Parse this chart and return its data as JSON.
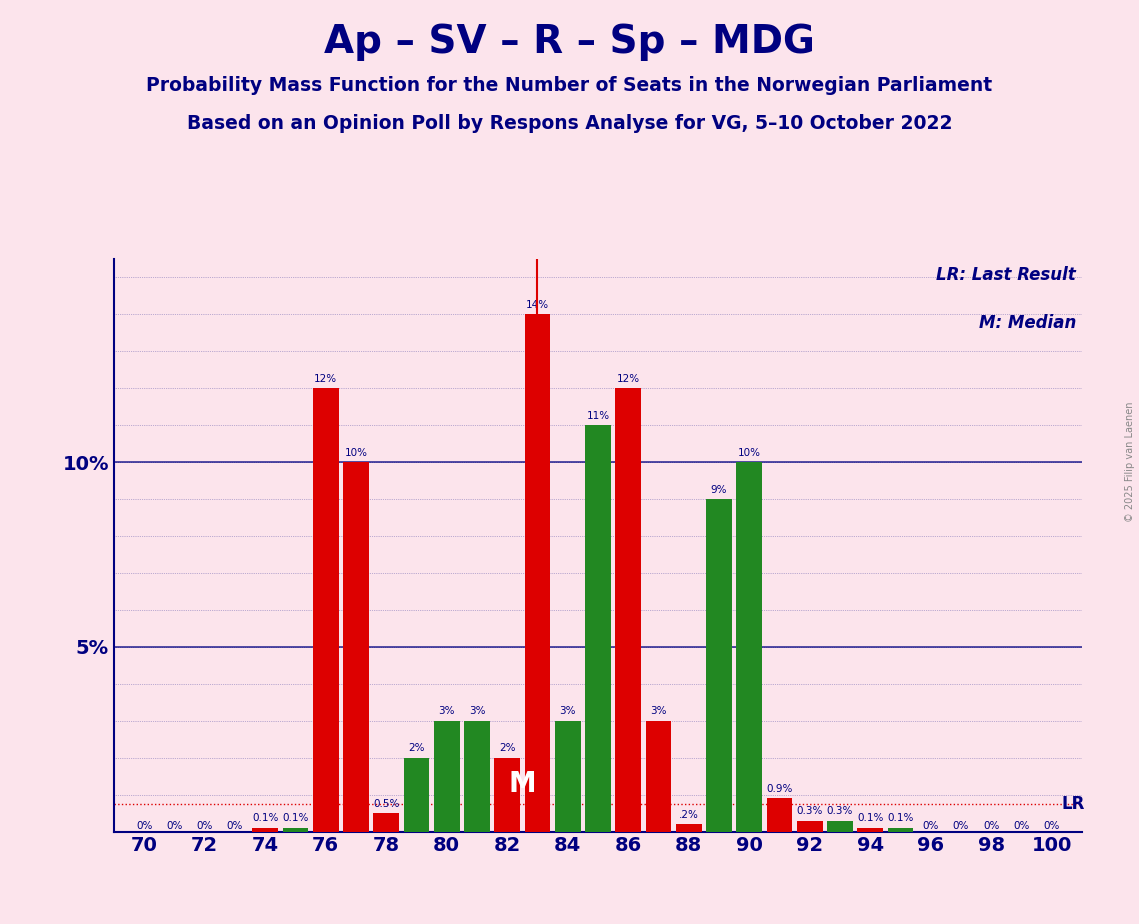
{
  "title": "Ap – SV – R – Sp – MDG",
  "subtitle1": "Probability Mass Function for the Number of Seats in the Norwegian Parliament",
  "subtitle2": "Based on an Opinion Poll by Respons Analyse for VG, 5–10 October 2022",
  "copyright": "© 2025 Filip van Laenen",
  "background_color": "#fce4ec",
  "bar_color_red": "#dd0000",
  "bar_color_green": "#228822",
  "title_color": "#000080",
  "bars": [
    {
      "x": 70,
      "value": 0.0,
      "color": "red",
      "label": "0%"
    },
    {
      "x": 71,
      "value": 0.0,
      "color": "red",
      "label": "0%"
    },
    {
      "x": 72,
      "value": 0.0,
      "color": "red",
      "label": "0%"
    },
    {
      "x": 73,
      "value": 0.0,
      "color": "red",
      "label": "0%"
    },
    {
      "x": 74,
      "value": 0.1,
      "color": "red",
      "label": "0.1%"
    },
    {
      "x": 75,
      "value": 0.1,
      "color": "green",
      "label": "0.1%"
    },
    {
      "x": 76,
      "value": 12.0,
      "color": "red",
      "label": "12%"
    },
    {
      "x": 77,
      "value": 10.0,
      "color": "red",
      "label": "10%"
    },
    {
      "x": 78,
      "value": 0.5,
      "color": "red",
      "label": "0.5%"
    },
    {
      "x": 79,
      "value": 2.0,
      "color": "green",
      "label": "2%"
    },
    {
      "x": 80,
      "value": 3.0,
      "color": "green",
      "label": "3%"
    },
    {
      "x": 81,
      "value": 3.0,
      "color": "green",
      "label": "3%"
    },
    {
      "x": 82,
      "value": 2.0,
      "color": "red",
      "label": "2%"
    },
    {
      "x": 83,
      "value": 14.0,
      "color": "red",
      "label": "14%"
    },
    {
      "x": 84,
      "value": 3.0,
      "color": "green",
      "label": "3%"
    },
    {
      "x": 85,
      "value": 11.0,
      "color": "green",
      "label": "11%"
    },
    {
      "x": 86,
      "value": 12.0,
      "color": "red",
      "label": "12%"
    },
    {
      "x": 87,
      "value": 3.0,
      "color": "red",
      "label": "3%"
    },
    {
      "x": 88,
      "value": 0.2,
      "color": "red",
      "label": ".2%"
    },
    {
      "x": 89,
      "value": 9.0,
      "color": "green",
      "label": "9%"
    },
    {
      "x": 90,
      "value": 10.0,
      "color": "green",
      "label": "10%"
    },
    {
      "x": 91,
      "value": 0.9,
      "color": "red",
      "label": "0.9%"
    },
    {
      "x": 92,
      "value": 0.3,
      "color": "red",
      "label": "0.3%"
    },
    {
      "x": 93,
      "value": 0.3,
      "color": "green",
      "label": "0.3%"
    },
    {
      "x": 94,
      "value": 0.1,
      "color": "red",
      "label": "0.1%"
    },
    {
      "x": 95,
      "value": 0.1,
      "color": "green",
      "label": "0.1%"
    },
    {
      "x": 96,
      "value": 0.0,
      "color": "red",
      "label": "0%"
    },
    {
      "x": 97,
      "value": 0.0,
      "color": "red",
      "label": "0%"
    },
    {
      "x": 98,
      "value": 0.0,
      "color": "red",
      "label": "0%"
    },
    {
      "x": 99,
      "value": 0.0,
      "color": "red",
      "label": "0%"
    },
    {
      "x": 100,
      "value": 0.0,
      "color": "red",
      "label": "0%"
    }
  ],
  "lr_x": 83,
  "median_x": 83,
  "lr_y": 0.75,
  "ylim": [
    0,
    15.5
  ],
  "xlim": [
    69,
    101
  ],
  "xticks": [
    70,
    72,
    74,
    76,
    78,
    80,
    82,
    84,
    86,
    88,
    90,
    92,
    94,
    96,
    98,
    100
  ],
  "ytick_vals": [
    5,
    10
  ],
  "ytick_labels": [
    "5%",
    "10%"
  ],
  "grid_dotted_vals": [
    1,
    2,
    3,
    4,
    5,
    6,
    7,
    8,
    9,
    10,
    11,
    12,
    13,
    14,
    15
  ],
  "grid_solid_vals": [
    5,
    10
  ],
  "bar_width": 0.85,
  "label_fontsize": 7.5,
  "tick_fontsize": 14,
  "title_fontsize": 28,
  "sub1_fontsize": 13.5,
  "sub2_fontsize": 13.5
}
